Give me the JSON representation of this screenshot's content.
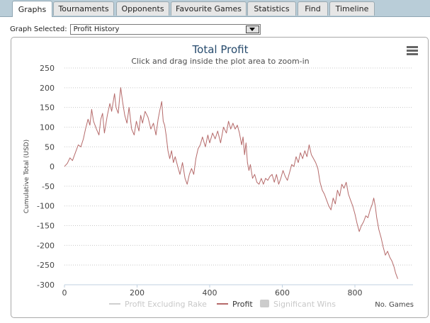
{
  "tabs": [
    {
      "label": "Graphs",
      "active": true
    },
    {
      "label": "Tournaments",
      "active": false
    },
    {
      "label": "Opponents",
      "active": false
    },
    {
      "label": "Favourite Games",
      "active": false
    },
    {
      "label": "Statistics",
      "active": false
    },
    {
      "label": "Find",
      "active": false
    },
    {
      "label": "Timeline",
      "active": false
    }
  ],
  "graph_selector": {
    "label": "Graph Selected:",
    "value": "Profit History"
  },
  "chart_data": {
    "type": "line",
    "title": "Total Profit",
    "subtitle": "Click and drag inside the plot area to zoom-in",
    "xlabel": "No. Games",
    "ylabel": "Cumulative Total (USD)",
    "xlim": [
      0,
      960
    ],
    "ylim": [
      -300,
      250
    ],
    "x_ticks": [
      0,
      200,
      400,
      600,
      800
    ],
    "y_ticks": [
      250,
      200,
      150,
      100,
      50,
      0,
      -50,
      -100,
      -150,
      -200,
      -250,
      -300
    ],
    "grid": "horizontal-dotted",
    "legend": {
      "placement": "bottom-center",
      "items": [
        {
          "name": "Profit Excluding Rake",
          "visible": false
        },
        {
          "name": "Profit",
          "visible": true
        },
        {
          "name": "Significant Wins",
          "visible": false
        }
      ]
    },
    "series": [
      {
        "name": "Profit",
        "color": "#b56a6a",
        "points": [
          [
            0,
            0
          ],
          [
            8,
            8
          ],
          [
            15,
            22
          ],
          [
            22,
            15
          ],
          [
            30,
            35
          ],
          [
            38,
            55
          ],
          [
            45,
            50
          ],
          [
            52,
            70
          ],
          [
            58,
            95
          ],
          [
            65,
            120
          ],
          [
            70,
            105
          ],
          [
            75,
            145
          ],
          [
            80,
            115
          ],
          [
            88,
            95
          ],
          [
            95,
            80
          ],
          [
            100,
            120
          ],
          [
            105,
            135
          ],
          [
            110,
            85
          ],
          [
            118,
            130
          ],
          [
            125,
            160
          ],
          [
            130,
            140
          ],
          [
            138,
            185
          ],
          [
            142,
            150
          ],
          [
            148,
            135
          ],
          [
            152,
            175
          ],
          [
            155,
            200
          ],
          [
            160,
            165
          ],
          [
            166,
            130
          ],
          [
            172,
            110
          ],
          [
            178,
            150
          ],
          [
            185,
            95
          ],
          [
            192,
            80
          ],
          [
            198,
            115
          ],
          [
            205,
            90
          ],
          [
            210,
            130
          ],
          [
            215,
            110
          ],
          [
            222,
            140
          ],
          [
            230,
            125
          ],
          [
            238,
            95
          ],
          [
            245,
            110
          ],
          [
            252,
            80
          ],
          [
            258,
            120
          ],
          [
            262,
            140
          ],
          [
            268,
            165
          ],
          [
            272,
            115
          ],
          [
            276,
            105
          ],
          [
            280,
            80
          ],
          [
            285,
            40
          ],
          [
            290,
            20
          ],
          [
            295,
            40
          ],
          [
            300,
            10
          ],
          [
            305,
            25
          ],
          [
            312,
            0
          ],
          [
            318,
            -20
          ],
          [
            325,
            10
          ],
          [
            332,
            -30
          ],
          [
            338,
            -45
          ],
          [
            344,
            -20
          ],
          [
            350,
            -5
          ],
          [
            356,
            -20
          ],
          [
            362,
            20
          ],
          [
            368,
            45
          ],
          [
            374,
            55
          ],
          [
            380,
            75
          ],
          [
            388,
            50
          ],
          [
            395,
            80
          ],
          [
            400,
            60
          ],
          [
            408,
            85
          ],
          [
            415,
            70
          ],
          [
            422,
            90
          ],
          [
            430,
            60
          ],
          [
            438,
            100
          ],
          [
            446,
            85
          ],
          [
            452,
            115
          ],
          [
            458,
            95
          ],
          [
            464,
            110
          ],
          [
            470,
            95
          ],
          [
            476,
            105
          ],
          [
            482,
            85
          ],
          [
            488,
            55
          ],
          [
            492,
            75
          ],
          [
            496,
            30
          ],
          [
            500,
            60
          ],
          [
            504,
            10
          ],
          [
            508,
            -10
          ],
          [
            512,
            5
          ],
          [
            518,
            -30
          ],
          [
            524,
            -20
          ],
          [
            530,
            -40
          ],
          [
            536,
            -45
          ],
          [
            542,
            -30
          ],
          [
            548,
            -45
          ],
          [
            554,
            -30
          ],
          [
            560,
            -35
          ],
          [
            566,
            -25
          ],
          [
            572,
            -20
          ],
          [
            578,
            -40
          ],
          [
            584,
            -20
          ],
          [
            590,
            -45
          ],
          [
            596,
            -30
          ],
          [
            602,
            -10
          ],
          [
            608,
            -25
          ],
          [
            614,
            -35
          ],
          [
            620,
            -15
          ],
          [
            626,
            5
          ],
          [
            632,
            0
          ],
          [
            638,
            25
          ],
          [
            644,
            10
          ],
          [
            650,
            35
          ],
          [
            656,
            20
          ],
          [
            662,
            40
          ],
          [
            668,
            25
          ],
          [
            674,
            55
          ],
          [
            680,
            30
          ],
          [
            686,
            20
          ],
          [
            692,
            10
          ],
          [
            698,
            -5
          ],
          [
            704,
            -40
          ],
          [
            710,
            -60
          ],
          [
            716,
            -70
          ],
          [
            722,
            -85
          ],
          [
            728,
            -100
          ],
          [
            734,
            -110
          ],
          [
            740,
            -80
          ],
          [
            746,
            -95
          ],
          [
            752,
            -60
          ],
          [
            758,
            -75
          ],
          [
            764,
            -45
          ],
          [
            770,
            -55
          ],
          [
            776,
            -40
          ],
          [
            782,
            -70
          ],
          [
            788,
            -85
          ],
          [
            794,
            -100
          ],
          [
            800,
            -120
          ],
          [
            806,
            -145
          ],
          [
            812,
            -165
          ],
          [
            818,
            -150
          ],
          [
            824,
            -140
          ],
          [
            830,
            -125
          ],
          [
            836,
            -130
          ],
          [
            842,
            -110
          ],
          [
            848,
            -95
          ],
          [
            852,
            -80
          ],
          [
            856,
            -100
          ],
          [
            860,
            -130
          ],
          [
            866,
            -160
          ],
          [
            872,
            -180
          ],
          [
            878,
            -205
          ],
          [
            884,
            -225
          ],
          [
            890,
            -215
          ],
          [
            896,
            -230
          ],
          [
            902,
            -240
          ],
          [
            908,
            -255
          ],
          [
            912,
            -270
          ],
          [
            918,
            -285
          ]
        ]
      }
    ]
  }
}
